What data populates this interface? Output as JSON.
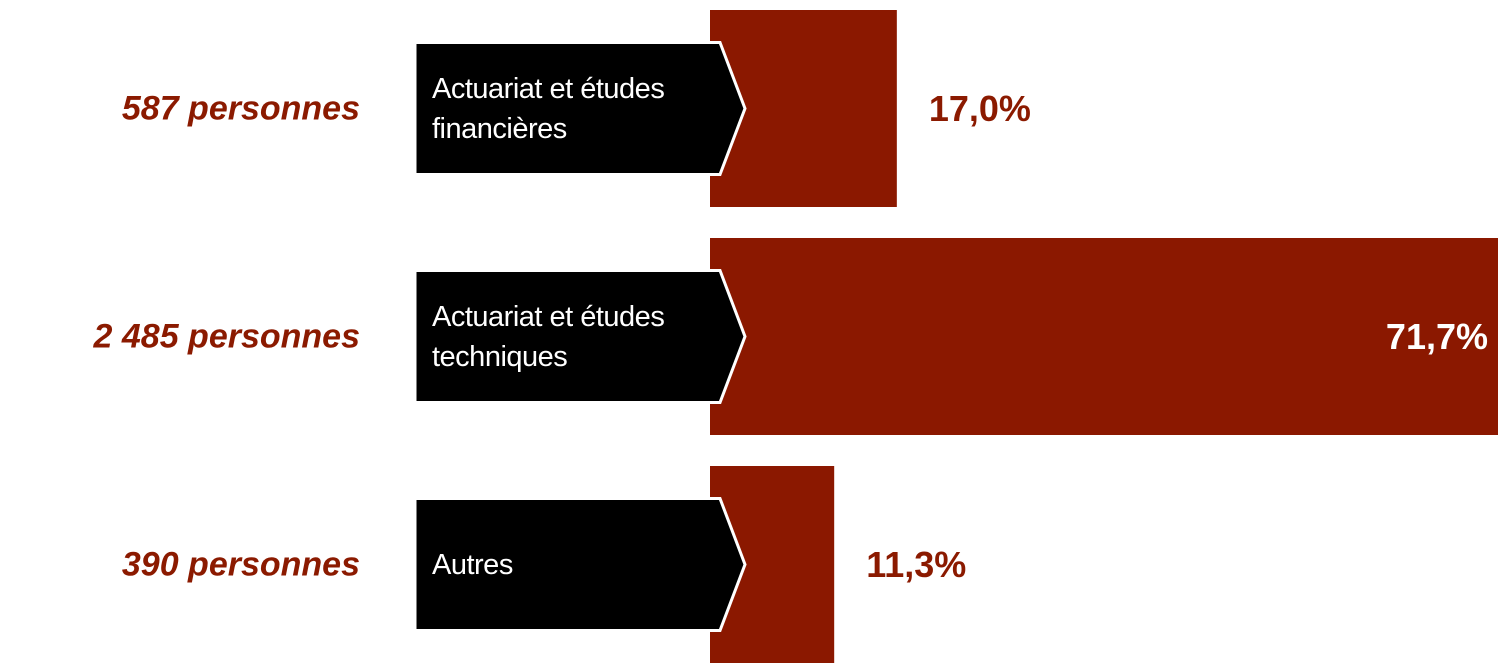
{
  "chart_data": {
    "type": "bar",
    "orientation": "horizontal",
    "categories": [
      "Actuariat et études financières",
      "Actuariat et études techniques",
      "Autres"
    ],
    "values": [
      17.0,
      71.7,
      11.3
    ],
    "value_labels": [
      "17,0%",
      "71,7%",
      "11,3%"
    ],
    "count_labels": [
      "587 personnes",
      "2 485 personnes",
      "390 personnes"
    ],
    "color": "#8b1800"
  }
}
